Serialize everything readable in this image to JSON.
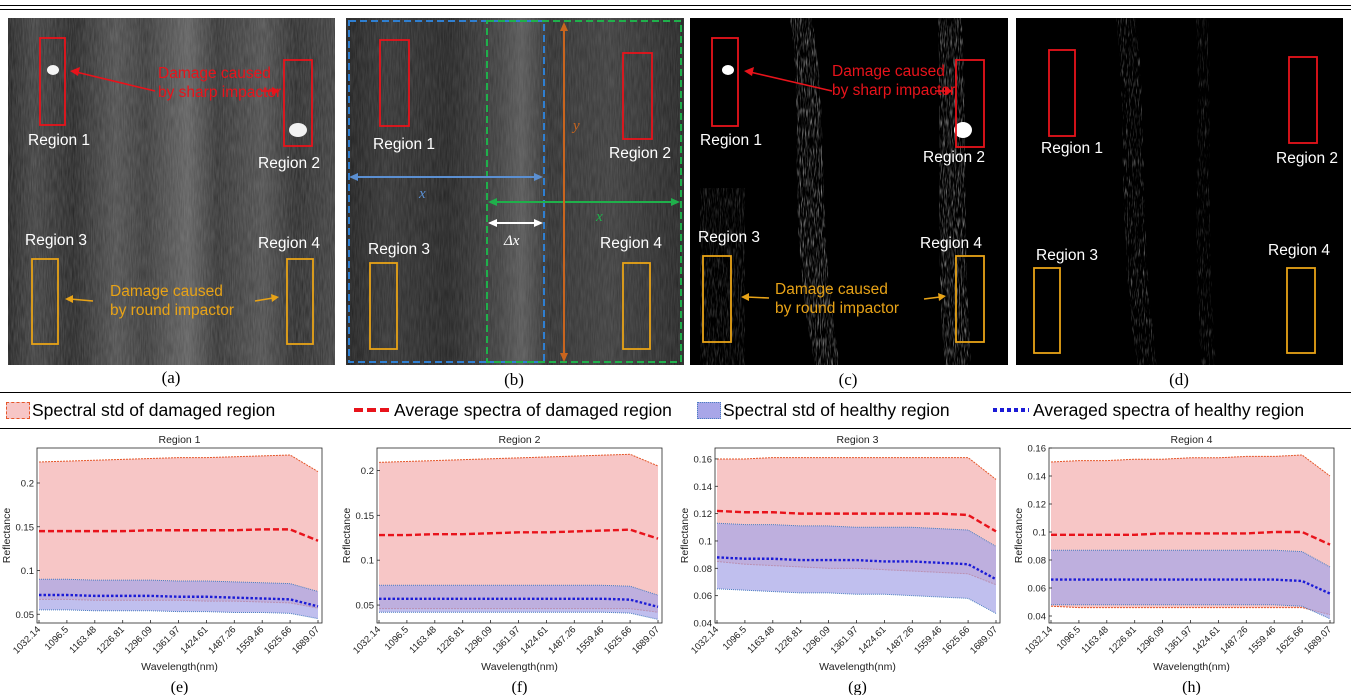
{
  "panels": [
    {
      "letter": "(a)",
      "regions": [
        "Region 1",
        "Region 2",
        "Region 3",
        "Region 4"
      ],
      "annotations": [
        "Damage caused",
        "by sharp impactor",
        "Damage caused",
        "by round impactor"
      ]
    },
    {
      "letter": "(b)",
      "regions": [
        "Region 1",
        "Region 2",
        "Region 3",
        "Region 4"
      ],
      "symbols": {
        "x_blue": "x",
        "x_green": "x",
        "y": "y",
        "dx": "Δx"
      }
    },
    {
      "letter": "(c)",
      "regions": [
        "Region 1",
        "Region 2",
        "Region 3",
        "Region 4"
      ],
      "annotations": [
        "Damage caused",
        "by sharp impactor",
        "Damage caused",
        "by round impactor"
      ]
    },
    {
      "letter": "(d)",
      "regions": [
        "Region 1",
        "Region 2",
        "Region 3",
        "Region 4"
      ]
    }
  ],
  "legend": {
    "items": [
      {
        "label": "Spectral std of damaged region",
        "style": "damaged-std"
      },
      {
        "label": "Average spectra of damaged region",
        "style": "damaged-mean"
      },
      {
        "label": "Spectral std of healthy region",
        "style": "healthy-std"
      },
      {
        "label": "Averaged spectra of healthy region",
        "style": "healthy-mean"
      }
    ]
  },
  "colors": {
    "damaged_fill": "#f7c6c6",
    "damaged_edge": "#e5572a",
    "damaged_mean": "#e8131b",
    "healthy_fill": "#a8a6e8",
    "healthy_edge": "#4a7fc1",
    "healthy_mean": "#1b1bd6",
    "red_box": "#e8131b",
    "yellow_box": "#e8a317",
    "blue_dash": "#2f7fd1",
    "green_dash": "#1fb04b",
    "orange_arrow": "#c9651e"
  },
  "chart_data": [
    {
      "type": "area",
      "title": "Region 1",
      "letter": "(e)",
      "xlabel": "Wavelength(nm)",
      "ylabel": "Reflectance",
      "xticks": [
        "1032.14",
        "1096.5",
        "1163.48",
        "1226.81",
        "1296.09",
        "1361.97",
        "1424.61",
        "1487.26",
        "1559.46",
        "1625.66",
        "1689.07"
      ],
      "yticks": [
        0.05,
        0.1,
        0.15,
        0.2
      ],
      "ylim": [
        0.04,
        0.24
      ],
      "damaged": {
        "mean": [
          0.145,
          0.145,
          0.145,
          0.145,
          0.146,
          0.146,
          0.146,
          0.146,
          0.147,
          0.147,
          0.134
        ],
        "upper": [
          0.224,
          0.225,
          0.226,
          0.227,
          0.228,
          0.229,
          0.229,
          0.23,
          0.231,
          0.232,
          0.213
        ],
        "lower": [
          0.067,
          0.067,
          0.066,
          0.066,
          0.066,
          0.066,
          0.065,
          0.065,
          0.064,
          0.063,
          0.057
        ]
      },
      "healthy": {
        "mean": [
          0.072,
          0.072,
          0.071,
          0.071,
          0.071,
          0.07,
          0.07,
          0.069,
          0.068,
          0.067,
          0.059
        ],
        "upper": [
          0.09,
          0.09,
          0.089,
          0.089,
          0.089,
          0.088,
          0.088,
          0.087,
          0.086,
          0.085,
          0.076
        ],
        "lower": [
          0.055,
          0.055,
          0.054,
          0.054,
          0.054,
          0.053,
          0.053,
          0.052,
          0.052,
          0.051,
          0.045
        ]
      }
    },
    {
      "type": "area",
      "title": "Region 2",
      "letter": "(f)",
      "xlabel": "Wavelength(nm)",
      "ylabel": "Reflectance",
      "xticks": [
        "1032.14",
        "1096.5",
        "1163.48",
        "1226.81",
        "1296.09",
        "1361.97",
        "1424.61",
        "1487.26",
        "1559.46",
        "1625.66",
        "1689.07"
      ],
      "yticks": [
        0.05,
        0.1,
        0.15,
        0.2
      ],
      "ylim": [
        0.03,
        0.225
      ],
      "damaged": {
        "mean": [
          0.128,
          0.128,
          0.129,
          0.129,
          0.13,
          0.131,
          0.131,
          0.132,
          0.133,
          0.134,
          0.124
        ],
        "upper": [
          0.209,
          0.21,
          0.211,
          0.212,
          0.213,
          0.214,
          0.215,
          0.216,
          0.217,
          0.218,
          0.205
        ],
        "lower": [
          0.046,
          0.046,
          0.046,
          0.046,
          0.046,
          0.046,
          0.046,
          0.046,
          0.046,
          0.046,
          0.042
        ]
      },
      "healthy": {
        "mean": [
          0.057,
          0.057,
          0.057,
          0.057,
          0.057,
          0.057,
          0.057,
          0.057,
          0.057,
          0.056,
          0.048
        ],
        "upper": [
          0.072,
          0.072,
          0.072,
          0.072,
          0.072,
          0.072,
          0.072,
          0.072,
          0.072,
          0.071,
          0.061
        ],
        "lower": [
          0.042,
          0.042,
          0.042,
          0.042,
          0.042,
          0.042,
          0.042,
          0.042,
          0.042,
          0.041,
          0.034
        ]
      }
    },
    {
      "type": "area",
      "title": "Region 3",
      "letter": "(g)",
      "xlabel": "Wavelength(nm)",
      "ylabel": "Reflectance",
      "xticks": [
        "1032.14",
        "1096.5",
        "1163.48",
        "1226.81",
        "1296.09",
        "1361.97",
        "1424.61",
        "1487.26",
        "1559.46",
        "1625.66",
        "1689.07"
      ],
      "yticks": [
        0.04,
        0.06,
        0.08,
        0.1,
        0.12,
        0.14,
        0.16
      ],
      "ylim": [
        0.04,
        0.168
      ],
      "damaged": {
        "mean": [
          0.122,
          0.121,
          0.121,
          0.12,
          0.12,
          0.12,
          0.12,
          0.12,
          0.12,
          0.119,
          0.107
        ],
        "upper": [
          0.16,
          0.16,
          0.161,
          0.161,
          0.161,
          0.161,
          0.161,
          0.161,
          0.161,
          0.161,
          0.145
        ],
        "lower": [
          0.085,
          0.083,
          0.082,
          0.081,
          0.08,
          0.08,
          0.079,
          0.078,
          0.077,
          0.076,
          0.068
        ]
      },
      "healthy": {
        "mean": [
          0.088,
          0.087,
          0.087,
          0.086,
          0.086,
          0.086,
          0.085,
          0.085,
          0.084,
          0.083,
          0.072
        ],
        "upper": [
          0.113,
          0.112,
          0.112,
          0.111,
          0.111,
          0.11,
          0.11,
          0.11,
          0.109,
          0.108,
          0.096
        ],
        "lower": [
          0.065,
          0.064,
          0.063,
          0.062,
          0.062,
          0.061,
          0.061,
          0.06,
          0.059,
          0.058,
          0.047
        ]
      }
    },
    {
      "type": "area",
      "title": "Region 4",
      "letter": "(h)",
      "xlabel": "Wavelength(nm)",
      "ylabel": "Reflectance",
      "xticks": [
        "1032.14",
        "1096.5",
        "1163.48",
        "1226.81",
        "1296.09",
        "1361.97",
        "1424.61",
        "1487.26",
        "1559.46",
        "1625.66",
        "1689.07"
      ],
      "yticks": [
        0.04,
        0.06,
        0.08,
        0.1,
        0.12,
        0.14,
        0.16
      ],
      "ylim": [
        0.035,
        0.16
      ],
      "damaged": {
        "mean": [
          0.098,
          0.098,
          0.098,
          0.098,
          0.099,
          0.099,
          0.099,
          0.099,
          0.1,
          0.1,
          0.091
        ],
        "upper": [
          0.15,
          0.151,
          0.151,
          0.152,
          0.152,
          0.153,
          0.153,
          0.154,
          0.154,
          0.155,
          0.14
        ],
        "lower": [
          0.047,
          0.046,
          0.046,
          0.046,
          0.046,
          0.046,
          0.046,
          0.046,
          0.046,
          0.046,
          0.041
        ]
      },
      "healthy": {
        "mean": [
          0.066,
          0.066,
          0.066,
          0.066,
          0.066,
          0.066,
          0.066,
          0.066,
          0.066,
          0.065,
          0.056
        ],
        "upper": [
          0.087,
          0.087,
          0.087,
          0.087,
          0.087,
          0.087,
          0.087,
          0.087,
          0.087,
          0.086,
          0.075
        ],
        "lower": [
          0.048,
          0.048,
          0.048,
          0.048,
          0.048,
          0.048,
          0.048,
          0.048,
          0.048,
          0.047,
          0.038
        ]
      }
    }
  ]
}
